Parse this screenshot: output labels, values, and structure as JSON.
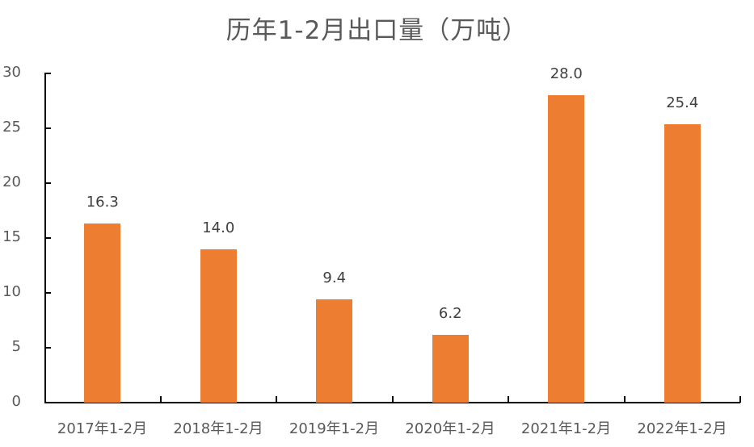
{
  "chart_data": {
    "type": "bar",
    "title": "历年1-2月出口量（万吨）",
    "categories": [
      "2017年1-2月",
      "2018年1-2月",
      "2019年1-2月",
      "2020年1-2月",
      "2021年1-2月",
      "2022年1-2月"
    ],
    "values": [
      16.3,
      14.0,
      9.4,
      6.2,
      28.0,
      25.4
    ],
    "value_labels": [
      "16.3",
      "14.0",
      "9.4",
      "6.2",
      "28.0",
      "25.4"
    ],
    "xlabel": "",
    "ylabel": "",
    "ylim": [
      0,
      30
    ],
    "yticks": [
      "0",
      "5",
      "10",
      "15",
      "20",
      "25",
      "30"
    ],
    "grid": false,
    "legend": null,
    "bar_color": "#ED7D31"
  }
}
